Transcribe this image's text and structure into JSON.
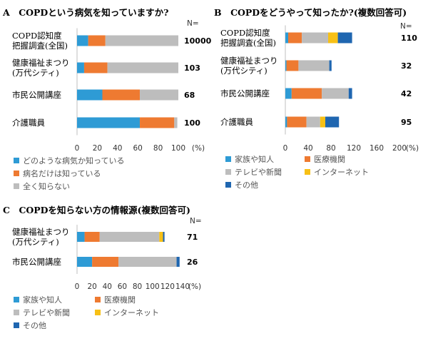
{
  "colors": {
    "family_friends": "#2E9BD5",
    "medical": "#EE7A31",
    "tv_news": "#BDBDBD",
    "internet": "#F7C016",
    "other": "#1F66B0"
  },
  "chart_data": [
    {
      "panel": "A",
      "type": "bar",
      "stacked": true,
      "orientation": "horizontal",
      "title": "A　COPDという病気を知っていますか?",
      "n_header": "N=",
      "categories": [
        "COPD認知度\n把握調査(全国)",
        "健康福祉まつり\n(万代シティ)",
        "市民公開講座",
        "介護職員"
      ],
      "n_values": [
        "10000",
        "103",
        "68",
        "100"
      ],
      "series": [
        {
          "name": "どのような病気か知っている",
          "color_key": "family_friends",
          "values": [
            11,
            7,
            25,
            62
          ]
        },
        {
          "name": "病名だけは知っている",
          "color_key": "medical",
          "values": [
            17,
            23,
            37,
            34
          ]
        },
        {
          "name": "全く知らない",
          "color_key": "tv_news",
          "values": [
            72,
            70,
            38,
            3
          ]
        }
      ],
      "xlim": [
        0,
        100
      ],
      "xticks": [
        "0",
        "20",
        "40",
        "60",
        "80",
        "100"
      ],
      "xunit": "(%)",
      "legend_position": "bottom-left"
    },
    {
      "panel": "B",
      "type": "bar",
      "stacked": true,
      "orientation": "horizontal",
      "title": "B　COPDをどうやって知ったか?(複数回答可)",
      "n_header": "N=",
      "categories": [
        "COPD認知度\n把握調査(全国)",
        "健康福祉まつり\n(万代シティ)",
        "市民公開講座",
        "介護職員"
      ],
      "n_values": [
        "110",
        "32",
        "42",
        "95"
      ],
      "series": [
        {
          "name": "家族や知人",
          "color_key": "family_friends",
          "values": [
            5,
            2,
            11,
            3
          ]
        },
        {
          "name": "医療機関",
          "color_key": "medical",
          "values": [
            24,
            21,
            53,
            34
          ]
        },
        {
          "name": "テレビや新聞",
          "color_key": "tv_news",
          "values": [
            46,
            54,
            47,
            24
          ]
        },
        {
          "name": "インターネット",
          "color_key": "internet",
          "values": [
            17,
            0,
            0,
            9
          ]
        },
        {
          "name": "その他",
          "color_key": "other",
          "values": [
            25,
            4,
            6,
            24
          ]
        }
      ],
      "xlim": [
        0,
        200
      ],
      "xticks": [
        "0",
        "40",
        "80",
        "120",
        "160",
        "200"
      ],
      "xunit": "(%)",
      "legend_position": "bottom-left"
    },
    {
      "panel": "C",
      "type": "bar",
      "stacked": true,
      "orientation": "horizontal",
      "title": "C　COPDを知らない方の情報源(複数回答可)",
      "n_header": "N=",
      "categories": [
        "健康福祉まつり\n(万代シティ)",
        "市民公開講座"
      ],
      "n_values": [
        "71",
        "26"
      ],
      "series": [
        {
          "name": "家族や知人",
          "color_key": "family_friends",
          "values": [
            10,
            20
          ]
        },
        {
          "name": "医療機関",
          "color_key": "medical",
          "values": [
            20,
            35
          ]
        },
        {
          "name": "テレビや新聞",
          "color_key": "tv_news",
          "values": [
            79,
            77
          ]
        },
        {
          "name": "インターネット",
          "color_key": "internet",
          "values": [
            5,
            0
          ]
        },
        {
          "name": "その他",
          "color_key": "other",
          "values": [
            2,
            4
          ]
        }
      ],
      "xlim": [
        0,
        140
      ],
      "xticks": [
        "0",
        "20",
        "40",
        "60",
        "80",
        "100",
        "120",
        "140"
      ],
      "xunit": "(%)",
      "legend_position": "bottom-left"
    }
  ]
}
